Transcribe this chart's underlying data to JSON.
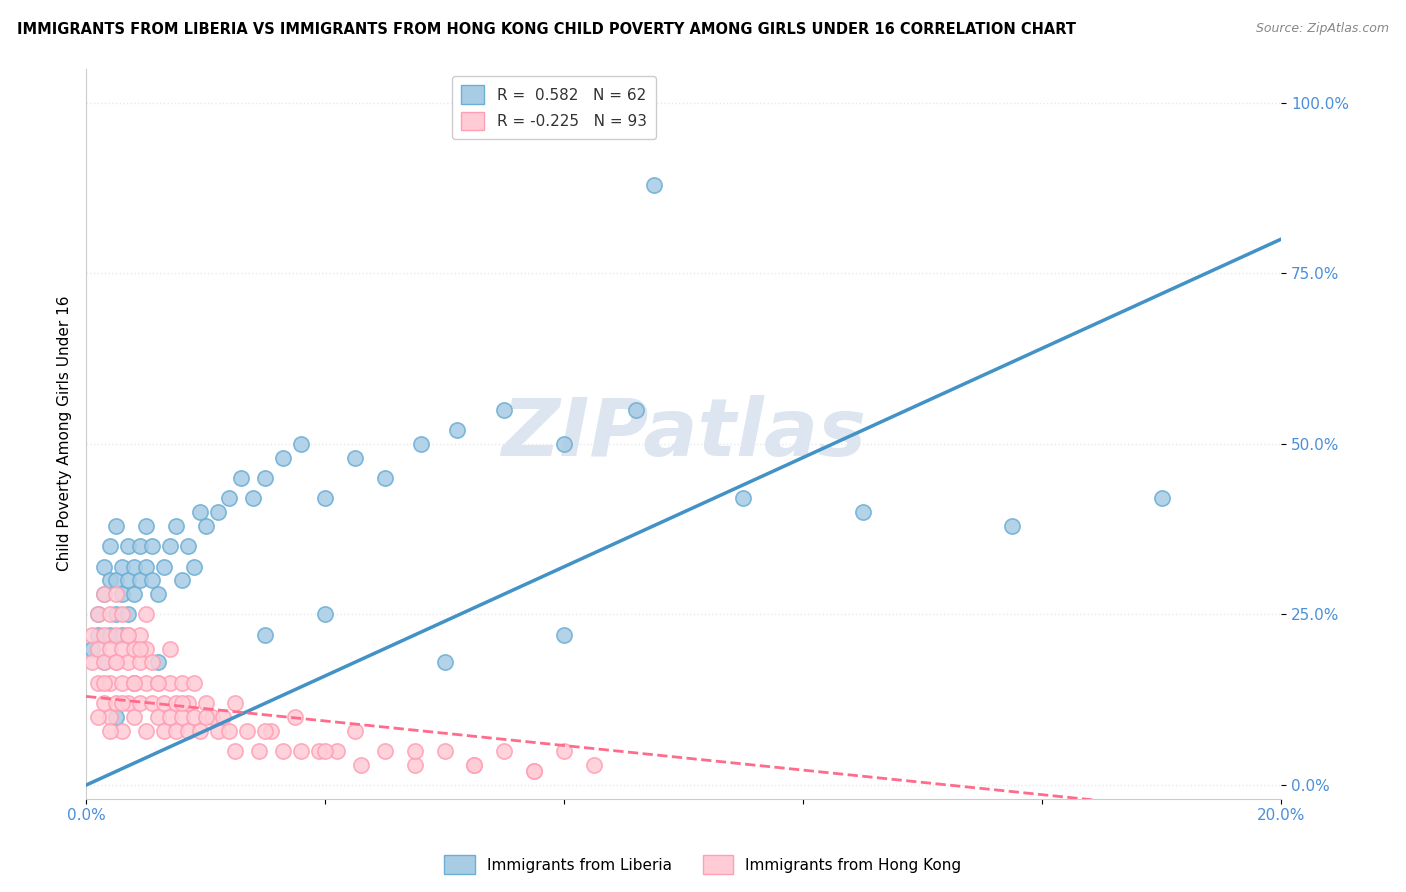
{
  "title": "IMMIGRANTS FROM LIBERIA VS IMMIGRANTS FROM HONG KONG CHILD POVERTY AMONG GIRLS UNDER 16 CORRELATION CHART",
  "source": "Source: ZipAtlas.com",
  "ylabel": "Child Poverty Among Girls Under 16",
  "xlim": [
    0.0,
    0.2
  ],
  "ylim": [
    -0.02,
    1.05
  ],
  "ytick_vals": [
    0.0,
    0.25,
    0.5,
    0.75,
    1.0
  ],
  "ytick_labels": [
    "0.0%",
    "25.0%",
    "50.0%",
    "75.0%",
    "100.0%"
  ],
  "xtick_vals": [
    0.0,
    0.04,
    0.08,
    0.12,
    0.16,
    0.2
  ],
  "xtick_labels": [
    "0.0%",
    "",
    "",
    "",
    "",
    "20.0%"
  ],
  "liberia_R": 0.582,
  "liberia_N": 62,
  "hongkong_R": -0.225,
  "hongkong_N": 93,
  "liberia_color": "#a8cce4",
  "liberia_edge": "#6baed6",
  "hongkong_color": "#ffccd5",
  "hongkong_edge": "#ff9eb5",
  "liberia_line_color": "#4292c6",
  "hongkong_line_color": "#ff6b8a",
  "watermark": "ZIPatlas",
  "watermark_color": "#dde5f0",
  "background_color": "#ffffff",
  "grid_color": "#e8e8e8",
  "liberia_x": [
    0.001,
    0.002,
    0.002,
    0.003,
    0.003,
    0.003,
    0.004,
    0.004,
    0.004,
    0.005,
    0.005,
    0.005,
    0.006,
    0.006,
    0.006,
    0.007,
    0.007,
    0.007,
    0.008,
    0.008,
    0.009,
    0.009,
    0.01,
    0.01,
    0.011,
    0.011,
    0.012,
    0.013,
    0.014,
    0.015,
    0.016,
    0.017,
    0.018,
    0.019,
    0.02,
    0.022,
    0.024,
    0.026,
    0.028,
    0.03,
    0.033,
    0.036,
    0.04,
    0.045,
    0.05,
    0.056,
    0.062,
    0.07,
    0.08,
    0.092,
    0.005,
    0.008,
    0.012,
    0.03,
    0.04,
    0.06,
    0.08,
    0.095,
    0.11,
    0.13,
    0.155,
    0.18
  ],
  "liberia_y": [
    0.2,
    0.22,
    0.25,
    0.18,
    0.28,
    0.32,
    0.22,
    0.3,
    0.35,
    0.25,
    0.3,
    0.38,
    0.28,
    0.32,
    0.22,
    0.25,
    0.3,
    0.35,
    0.28,
    0.32,
    0.3,
    0.35,
    0.32,
    0.38,
    0.3,
    0.35,
    0.28,
    0.32,
    0.35,
    0.38,
    0.3,
    0.35,
    0.32,
    0.4,
    0.38,
    0.4,
    0.42,
    0.45,
    0.42,
    0.45,
    0.48,
    0.5,
    0.42,
    0.48,
    0.45,
    0.5,
    0.52,
    0.55,
    0.5,
    0.55,
    0.1,
    0.15,
    0.18,
    0.22,
    0.25,
    0.18,
    0.22,
    0.88,
    0.42,
    0.4,
    0.38,
    0.42
  ],
  "hongkong_x": [
    0.001,
    0.001,
    0.002,
    0.002,
    0.002,
    0.003,
    0.003,
    0.003,
    0.003,
    0.004,
    0.004,
    0.004,
    0.004,
    0.005,
    0.005,
    0.005,
    0.005,
    0.006,
    0.006,
    0.006,
    0.006,
    0.007,
    0.007,
    0.007,
    0.008,
    0.008,
    0.008,
    0.009,
    0.009,
    0.009,
    0.01,
    0.01,
    0.01,
    0.011,
    0.011,
    0.012,
    0.012,
    0.013,
    0.013,
    0.014,
    0.014,
    0.015,
    0.015,
    0.016,
    0.016,
    0.017,
    0.017,
    0.018,
    0.019,
    0.02,
    0.021,
    0.022,
    0.023,
    0.024,
    0.025,
    0.027,
    0.029,
    0.031,
    0.033,
    0.036,
    0.039,
    0.042,
    0.046,
    0.05,
    0.055,
    0.06,
    0.065,
    0.07,
    0.075,
    0.08,
    0.002,
    0.003,
    0.004,
    0.005,
    0.006,
    0.007,
    0.008,
    0.009,
    0.01,
    0.012,
    0.014,
    0.016,
    0.018,
    0.02,
    0.025,
    0.03,
    0.035,
    0.04,
    0.045,
    0.055,
    0.065,
    0.075,
    0.085
  ],
  "hongkong_y": [
    0.18,
    0.22,
    0.15,
    0.2,
    0.25,
    0.18,
    0.22,
    0.12,
    0.28,
    0.2,
    0.15,
    0.25,
    0.1,
    0.18,
    0.22,
    0.12,
    0.28,
    0.15,
    0.2,
    0.08,
    0.25,
    0.18,
    0.12,
    0.22,
    0.15,
    0.2,
    0.1,
    0.18,
    0.12,
    0.22,
    0.15,
    0.08,
    0.2,
    0.12,
    0.18,
    0.1,
    0.15,
    0.12,
    0.08,
    0.15,
    0.1,
    0.12,
    0.08,
    0.1,
    0.15,
    0.08,
    0.12,
    0.1,
    0.08,
    0.12,
    0.1,
    0.08,
    0.1,
    0.08,
    0.05,
    0.08,
    0.05,
    0.08,
    0.05,
    0.05,
    0.05,
    0.05,
    0.03,
    0.05,
    0.03,
    0.05,
    0.03,
    0.05,
    0.02,
    0.05,
    0.1,
    0.15,
    0.08,
    0.18,
    0.12,
    0.22,
    0.15,
    0.2,
    0.25,
    0.15,
    0.2,
    0.12,
    0.15,
    0.1,
    0.12,
    0.08,
    0.1,
    0.05,
    0.08,
    0.05,
    0.03,
    0.02,
    0.03
  ]
}
